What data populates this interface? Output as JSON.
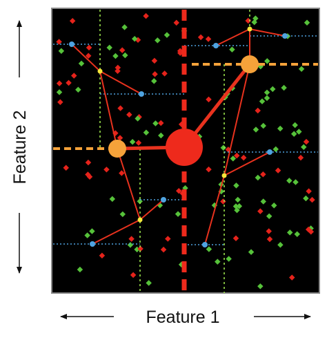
{
  "axes": {
    "x_label": "Feature 1",
    "y_label": "Feature 2"
  }
}
